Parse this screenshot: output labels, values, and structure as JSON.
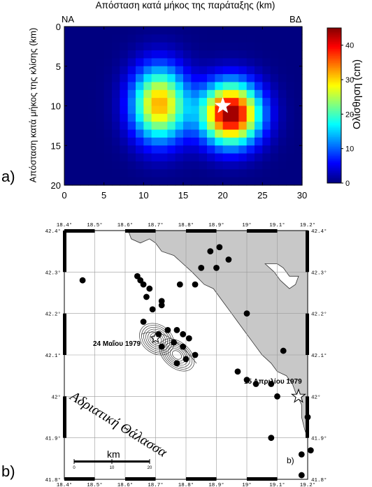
{
  "panel_a": {
    "letter": "a)",
    "title": "Απόσταση κατά μήκος της παράταξης (km)",
    "ylabel": "Απόσταση κατά μήκος της κλίσης (km)",
    "corner_left": "ΝΑ",
    "corner_right": "ΒΔ",
    "x_ticks": [
      "0",
      "5",
      "10",
      "15",
      "20",
      "25",
      "30"
    ],
    "y_ticks": [
      "0",
      "5",
      "10",
      "15",
      "20"
    ],
    "colorbar": {
      "label": "Ολίσθηση (cm)",
      "ticks": [
        "0",
        "10",
        "20",
        "30",
        "40"
      ],
      "range": [
        0,
        45
      ]
    },
    "chart_data": {
      "type": "heatmap",
      "title": "Απόσταση κατά μήκος της παράταξης (km)",
      "xlabel": "Απόσταση κατά μήκος της παράταξης (km)",
      "ylabel": "Απόσταση κατά μήκος της κλίσης (km)",
      "xlim": [
        0,
        30
      ],
      "ylim": [
        0,
        20
      ],
      "zlim": [
        0,
        45
      ],
      "z_label": "Ολίσθηση (cm)",
      "slip_patches": [
        {
          "center_km": [
            12,
            9.8
          ],
          "peak_cm": 32
        },
        {
          "center_km": [
            21,
            11
          ],
          "peak_cm": 45
        }
      ],
      "hypocenter_km": [
        20,
        10
      ]
    }
  },
  "panel_b": {
    "letter": "b)",
    "inset_letter": "b)",
    "lon_ticks": [
      "18.4°",
      "18.5°",
      "18.6°",
      "18.7°",
      "18.8°",
      "18.9°",
      "19°",
      "19.1°",
      "19.2°"
    ],
    "lat_ticks": [
      "42.4°",
      "42.3°",
      "42.2°",
      "42.1°",
      "42°",
      "41.9°",
      "41.8°"
    ],
    "quake_label_1": "24 Μαΐου 1979",
    "quake_label_2": "15 Απριλίου 1979",
    "sea_label": "Αδριατική Θάλασσα",
    "scale": {
      "unit": "km",
      "ticks": [
        "0",
        "10",
        "20"
      ]
    },
    "events": [
      [
        18.46,
        42.28
      ],
      [
        18.64,
        42.29
      ],
      [
        18.65,
        42.28
      ],
      [
        18.66,
        42.27
      ],
      [
        18.68,
        42.26
      ],
      [
        18.67,
        42.24
      ],
      [
        18.72,
        42.23
      ],
      [
        18.72,
        42.22
      ],
      [
        18.69,
        42.21
      ],
      [
        18.66,
        42.18
      ],
      [
        18.74,
        42.16
      ],
      [
        18.77,
        42.16
      ],
      [
        18.79,
        42.15
      ],
      [
        18.81,
        42.14
      ],
      [
        18.71,
        42.15
      ],
      [
        18.79,
        42.12
      ],
      [
        18.76,
        42.13
      ],
      [
        18.77,
        42.08
      ],
      [
        18.83,
        42.1
      ],
      [
        18.8,
        42.09
      ],
      [
        18.72,
        42.12
      ],
      [
        18.78,
        42.27
      ],
      [
        18.83,
        42.27
      ],
      [
        18.85,
        42.31
      ],
      [
        18.88,
        42.35
      ],
      [
        18.9,
        42.31
      ],
      [
        18.91,
        42.36
      ],
      [
        18.94,
        42.33
      ],
      [
        19.0,
        42.2
      ],
      [
        19.12,
        42.11
      ],
      [
        18.97,
        42.06
      ],
      [
        19.0,
        42.04
      ],
      [
        19.03,
        42.03
      ],
      [
        19.08,
        42.03
      ],
      [
        19.1,
        42.0
      ],
      [
        19.08,
        41.9
      ],
      [
        19.2,
        41.95
      ],
      [
        19.18,
        41.86
      ],
      [
        19.21,
        41.87
      ],
      [
        19.18,
        41.81
      ]
    ]
  }
}
